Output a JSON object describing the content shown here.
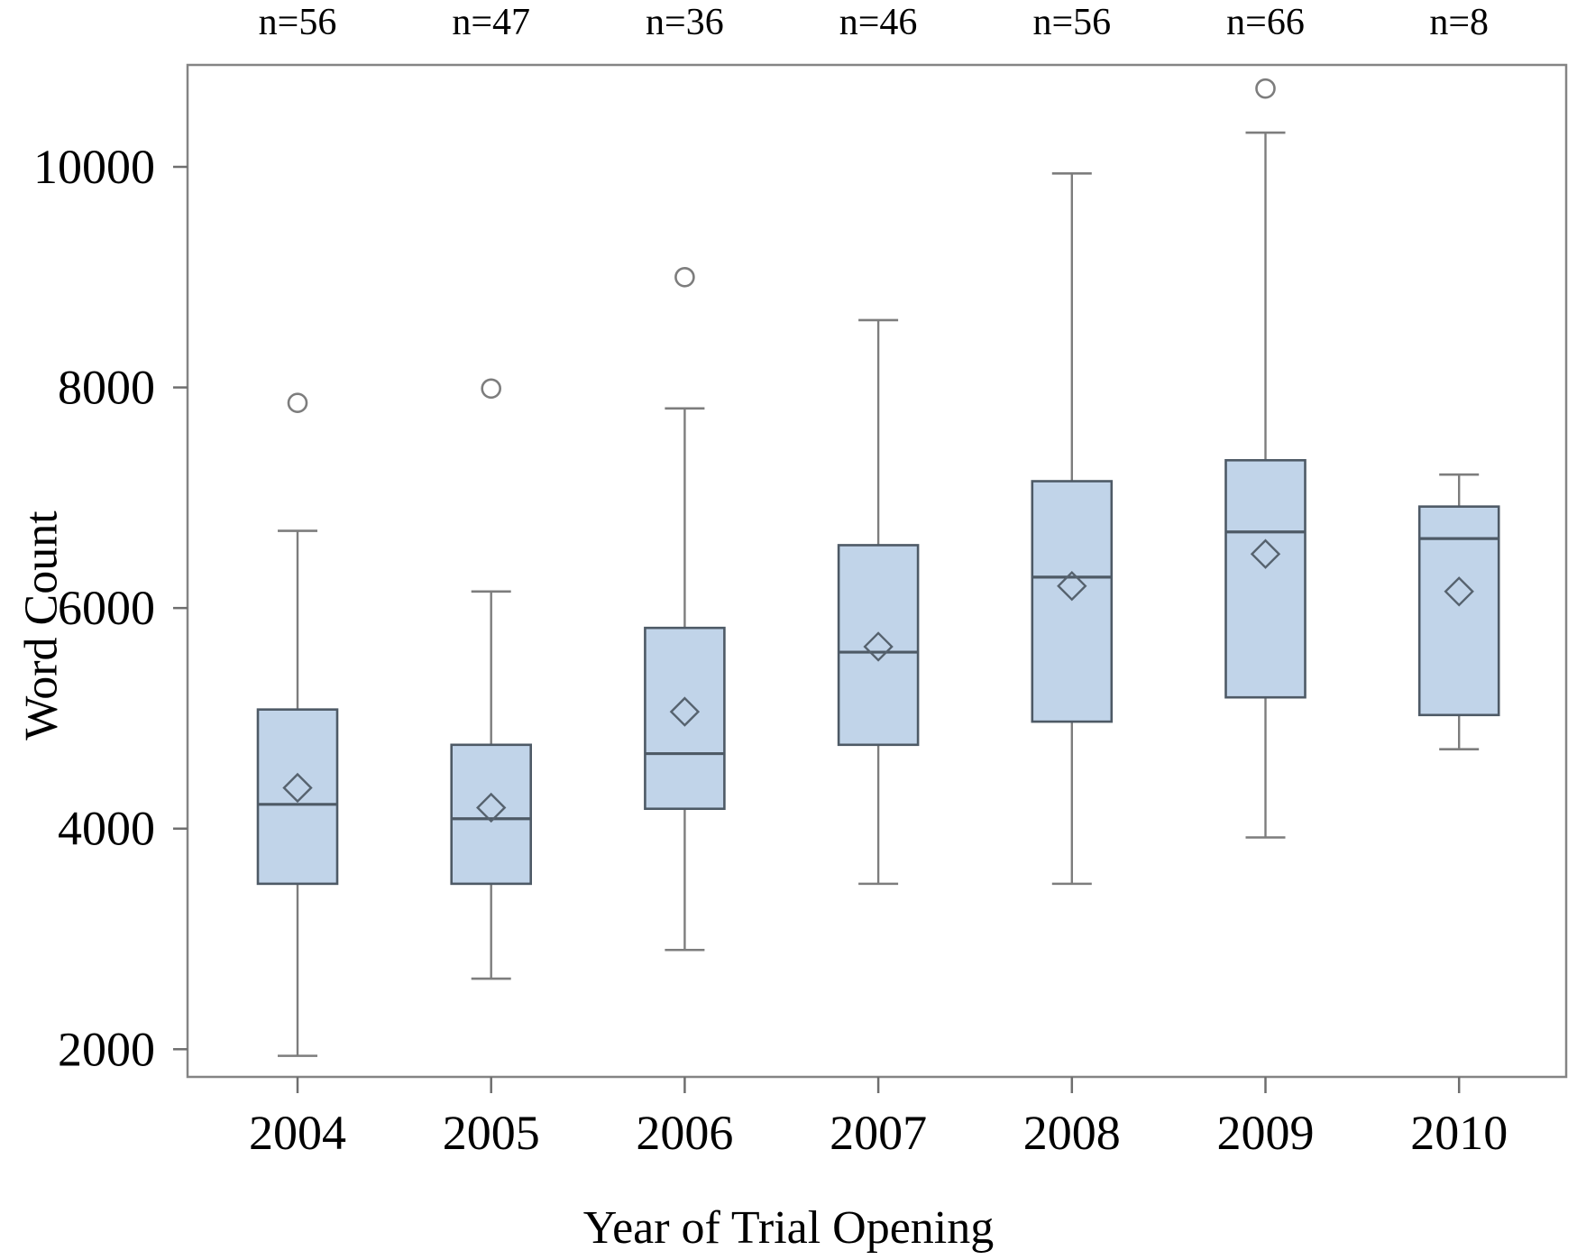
{
  "chart_data": {
    "type": "boxplot",
    "title": "",
    "xlabel": "Year of Trial Opening",
    "ylabel": "Word Count",
    "legend": "none",
    "grid": false,
    "y_axis": {
      "ticks": [
        2000,
        4000,
        6000,
        8000,
        10000
      ],
      "tick_labels": [
        "2000",
        "4000",
        "6000",
        "8000",
        "10000"
      ],
      "range_shown": [
        1750,
        10925
      ]
    },
    "categories": [
      "2004",
      "2005",
      "2006",
      "2007",
      "2008",
      "2009",
      "2010"
    ],
    "n_labels": [
      "n=56",
      "n=47",
      "n=36",
      "n=46",
      "n=56",
      "n=66",
      "n=8"
    ],
    "groups": [
      {
        "year": "2004",
        "n": 56,
        "n_label": "n=56",
        "whisker_low": 1940,
        "q1": 3500,
        "median": 4220,
        "mean": 4370,
        "q3": 5080,
        "whisker_high": 6700,
        "outliers": [
          7860
        ]
      },
      {
        "year": "2005",
        "n": 47,
        "n_label": "n=47",
        "whisker_low": 2640,
        "q1": 3500,
        "median": 4090,
        "mean": 4190,
        "q3": 4760,
        "whisker_high": 6150,
        "outliers": [
          7990
        ]
      },
      {
        "year": "2006",
        "n": 36,
        "n_label": "n=36",
        "whisker_low": 2900,
        "q1": 4180,
        "median": 4680,
        "mean": 5060,
        "q3": 5820,
        "whisker_high": 7810,
        "outliers": [
          9000
        ]
      },
      {
        "year": "2007",
        "n": 46,
        "n_label": "n=46",
        "whisker_low": 3500,
        "q1": 4760,
        "median": 5600,
        "mean": 5650,
        "q3": 6570,
        "whisker_high": 8610,
        "outliers": []
      },
      {
        "year": "2008",
        "n": 56,
        "n_label": "n=56",
        "whisker_low": 3500,
        "q1": 4970,
        "median": 6280,
        "mean": 6200,
        "q3": 7150,
        "whisker_high": 9940,
        "outliers": []
      },
      {
        "year": "2009",
        "n": 66,
        "n_label": "n=66",
        "whisker_low": 3920,
        "q1": 5190,
        "median": 6690,
        "mean": 6490,
        "q3": 7340,
        "whisker_high": 10310,
        "outliers": [
          10710
        ]
      },
      {
        "year": "2010",
        "n": 8,
        "n_label": "n=8",
        "whisker_low": 4720,
        "q1": 5030,
        "median": 6630,
        "mean": 6150,
        "q3": 6920,
        "whisker_high": 7210,
        "outliers": []
      }
    ],
    "marker_meanings": {
      "diamond": "mean",
      "circle": "outlier",
      "box": "interquartile range (Q1-Q3)",
      "line_in_box": "median"
    },
    "colors": {
      "background": "#ffffff",
      "box_fill": "#c1d4e9",
      "box_border": "#4e5a66",
      "median_line": "#4e5a66",
      "mean_diamond": "#56626e",
      "whisker": "#7d7d7d",
      "outlier_stroke": "#7d7d7d",
      "frame": "#848484",
      "tick": "#6e6e6e",
      "text": "#000000"
    }
  }
}
